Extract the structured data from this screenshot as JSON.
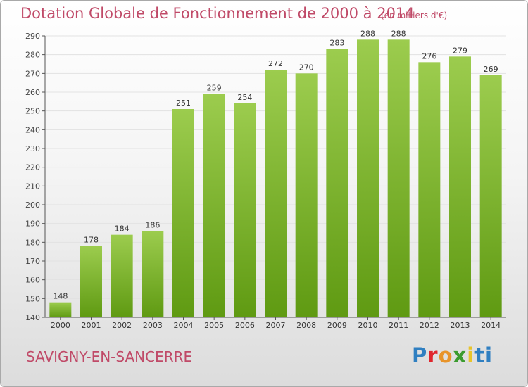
{
  "chart_data": {
    "type": "bar",
    "title": "Dotation Globale de Fonctionnement de 2000 à 2014",
    "unit_note": "(en milliers d'€)",
    "categories": [
      "2000",
      "2001",
      "2002",
      "2003",
      "2004",
      "2005",
      "2006",
      "2007",
      "2008",
      "2009",
      "2010",
      "2011",
      "2012",
      "2013",
      "2014"
    ],
    "values": [
      148,
      178,
      184,
      186,
      251,
      259,
      254,
      272,
      270,
      283,
      288,
      288,
      276,
      279,
      269
    ],
    "ylim": [
      140,
      290
    ],
    "yticks": [
      140,
      150,
      160,
      170,
      180,
      190,
      200,
      210,
      220,
      230,
      240,
      250,
      260,
      270,
      280,
      290
    ],
    "grid": true,
    "bar_color_top": "#9ccc4e",
    "bar_color_bottom": "#5f9a12",
    "xlabel": "",
    "ylabel": ""
  },
  "footer": {
    "commune": "SAVIGNY-EN-SANCERRE",
    "logo": "Proxiti",
    "logo_letters": [
      "P",
      "r",
      "o",
      "x",
      "i",
      "ti"
    ]
  },
  "colors": {
    "text_accent": "#c04a68",
    "grid": "#e2e2e2",
    "axis": "#555555"
  }
}
